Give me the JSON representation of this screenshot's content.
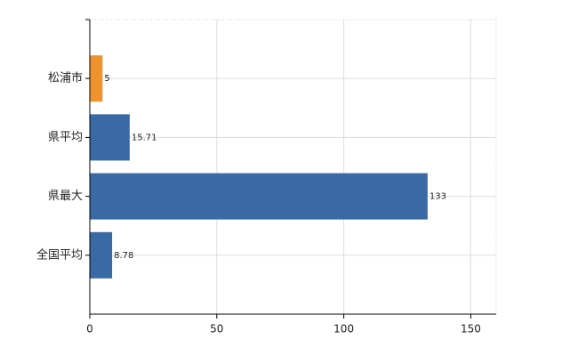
{
  "chart_data": {
    "type": "bar",
    "orientation": "horizontal",
    "categories": [
      "松浦市",
      "県平均",
      "県最大",
      "全国平均"
    ],
    "values": [
      5,
      15.71,
      133,
      8.78
    ],
    "colors": [
      "#f0922e",
      "#3a6aa5",
      "#3a6aa5",
      "#3a6aa5"
    ],
    "xlim": [
      0,
      160
    ],
    "xticks": [
      0,
      50,
      100,
      150
    ],
    "grid": true
  }
}
